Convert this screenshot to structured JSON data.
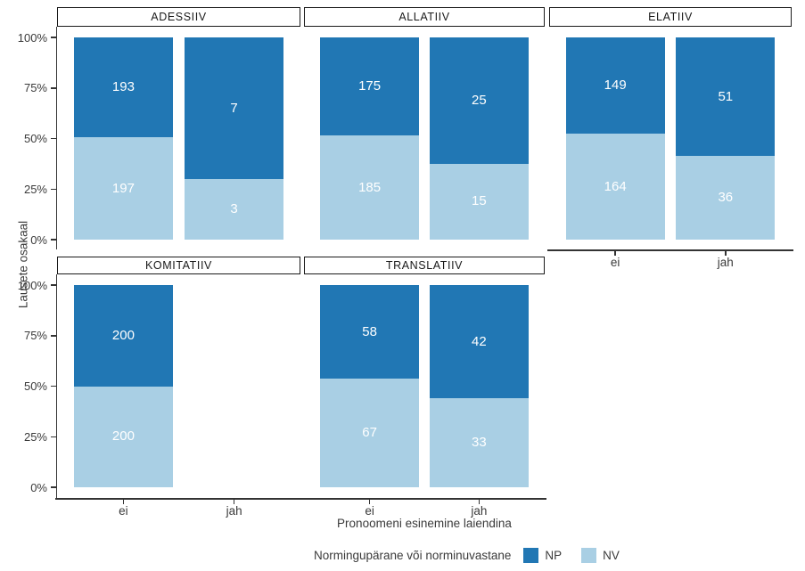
{
  "chart_data": {
    "type": "bar",
    "stacked": true,
    "stack_mode": "fill-percent",
    "title": "",
    "xlabel": "Pronoomeni esinemine laiendina",
    "ylabel": "Lausete osakaal",
    "x_categories": [
      "ei",
      "jah"
    ],
    "y_ticks": [
      "0%",
      "25%",
      "50%",
      "75%",
      "100%"
    ],
    "ylim": [
      0,
      100
    ],
    "grid": false,
    "legend": {
      "title": "Normingupärane või norminuvastane",
      "position": "bottom",
      "entries": [
        {
          "label": "NP",
          "color": "#2177b4"
        },
        {
          "label": "NV",
          "color": "#a9cfe4"
        }
      ]
    },
    "facets": [
      {
        "name": "ADESSIIV",
        "row": 0,
        "col": 0,
        "show_y_axis": true,
        "show_x_axis": false,
        "bars": [
          {
            "x": "ei",
            "NP": 193,
            "NV": 197
          },
          {
            "x": "jah",
            "NP": 7,
            "NV": 3
          }
        ]
      },
      {
        "name": "ALLATIIV",
        "row": 0,
        "col": 1,
        "show_y_axis": false,
        "show_x_axis": false,
        "bars": [
          {
            "x": "ei",
            "NP": 175,
            "NV": 185
          },
          {
            "x": "jah",
            "NP": 25,
            "NV": 15
          }
        ]
      },
      {
        "name": "ELATIIV",
        "row": 0,
        "col": 2,
        "show_y_axis": false,
        "show_x_axis": true,
        "bars": [
          {
            "x": "ei",
            "NP": 149,
            "NV": 164
          },
          {
            "x": "jah",
            "NP": 51,
            "NV": 36
          }
        ]
      },
      {
        "name": "KOMITATIIV",
        "row": 1,
        "col": 0,
        "show_y_axis": true,
        "show_x_axis": true,
        "bars": [
          {
            "x": "ei",
            "NP": 200,
            "NV": 200
          }
        ]
      },
      {
        "name": "TRANSLATIIV",
        "row": 1,
        "col": 1,
        "show_y_axis": false,
        "show_x_axis": true,
        "bars": [
          {
            "x": "ei",
            "NP": 58,
            "NV": 67
          },
          {
            "x": "jah",
            "NP": 42,
            "NV": 33
          }
        ]
      }
    ]
  },
  "colors": {
    "np": "#2177b4",
    "nv": "#a9cfe4",
    "axis": "#333333",
    "strip_border": "#1a1a1a",
    "text": "#3a3a3a",
    "bar_label": "#ffffff",
    "background": "#ffffff"
  }
}
